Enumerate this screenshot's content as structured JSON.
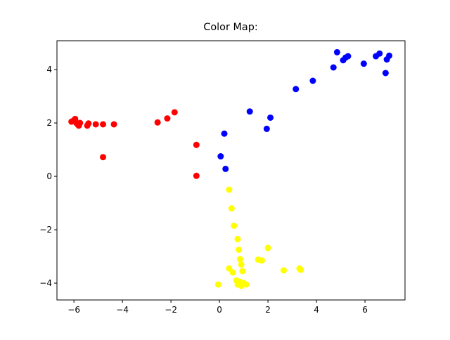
{
  "chart_data": {
    "type": "scatter",
    "title": "Color Map:",
    "xlim": [
      -6.7,
      7.65
    ],
    "ylim": [
      -4.63,
      5.08
    ],
    "xticks": [
      {
        "value": -6,
        "label": "−6"
      },
      {
        "value": -4,
        "label": "−4"
      },
      {
        "value": -2,
        "label": "−2"
      },
      0,
      2,
      4,
      6
    ],
    "yticks": [
      {
        "value": -4,
        "label": "−4"
      },
      {
        "value": -2,
        "label": "−2"
      },
      0,
      2,
      4
    ],
    "series": [
      {
        "color": "#ff0000",
        "x": [
          -6.1,
          -6.0,
          -5.95,
          -5.9,
          -5.85,
          -5.8,
          -5.75,
          -5.45,
          -5.4,
          -5.1,
          -4.8,
          -4.35,
          -4.8,
          -2.55,
          -2.15,
          -1.85,
          -0.95,
          -0.95
        ],
        "values": [
          2.05,
          2.1,
          2.15,
          2.0,
          1.95,
          1.9,
          2.0,
          1.9,
          1.98,
          1.95,
          1.95,
          1.95,
          0.72,
          2.02,
          2.17,
          2.4,
          1.18,
          0.02
        ]
      },
      {
        "color": "#0000ff",
        "x": [
          0.05,
          0.2,
          0.25,
          1.25,
          1.95,
          2.1,
          3.15,
          3.85,
          4.7,
          4.85,
          5.1,
          5.2,
          5.3,
          5.95,
          6.45,
          6.6,
          6.85,
          6.9,
          7.0
        ],
        "values": [
          0.75,
          1.6,
          0.28,
          2.43,
          1.78,
          2.2,
          3.27,
          3.58,
          4.08,
          4.65,
          4.35,
          4.45,
          4.5,
          4.22,
          4.5,
          4.6,
          3.87,
          4.38,
          4.52
        ]
      },
      {
        "color": "#ffff00",
        "x": [
          0.4,
          0.5,
          0.6,
          0.75,
          0.8,
          0.85,
          0.9,
          0.95,
          0.4,
          0.55,
          -0.05,
          0.7,
          0.75,
          0.85,
          0.9,
          1.0,
          1.1,
          1.6,
          1.75,
          2.0,
          2.65,
          3.3,
          3.35
        ],
        "values": [
          -0.5,
          -1.2,
          -1.85,
          -2.35,
          -2.75,
          -3.1,
          -3.3,
          -3.55,
          -3.45,
          -3.6,
          -4.05,
          -3.9,
          -4.05,
          -3.95,
          -4.1,
          -4.0,
          -4.05,
          -3.12,
          -3.15,
          -2.68,
          -3.52,
          -3.45,
          -3.5
        ]
      }
    ]
  }
}
